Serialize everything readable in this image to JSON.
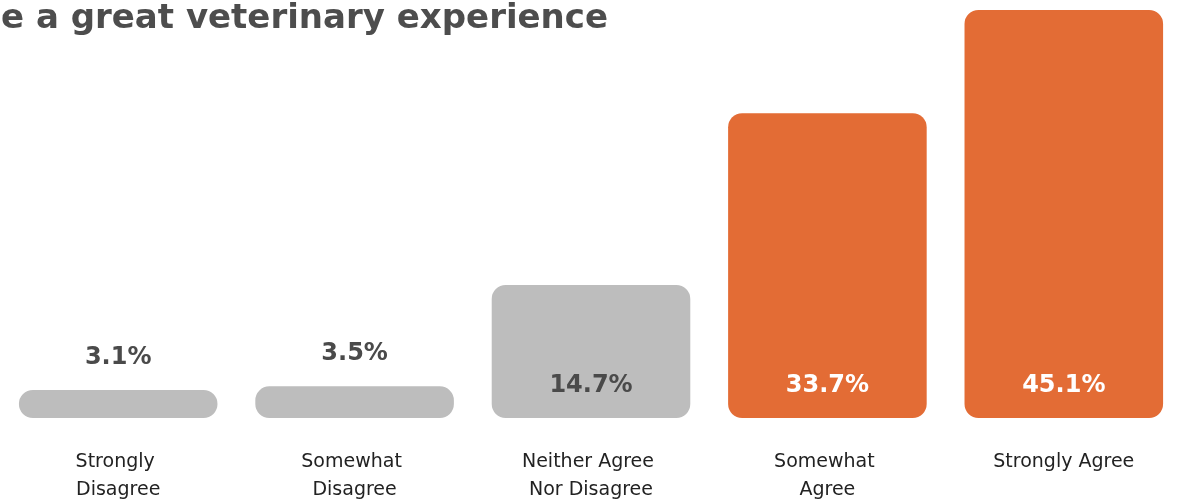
{
  "chart_data": {
    "type": "bar",
    "title": "e a great veterinary experience",
    "categories": [
      "Strongly Disagree",
      "Somewhat Disagree",
      "Neither Agree Nor Disagree",
      "Somewhat Agree",
      "Strongly Agree"
    ],
    "values": [
      3.1,
      3.5,
      14.7,
      33.7,
      45.1
    ],
    "colors": [
      "#bdbdbd",
      "#bdbdbd",
      "#bdbdbd",
      "#e36c35",
      "#e36c35"
    ],
    "value_labels": [
      "3.1%",
      "3.5%",
      "14.7%",
      "33.7%",
      "45.1%"
    ]
  }
}
